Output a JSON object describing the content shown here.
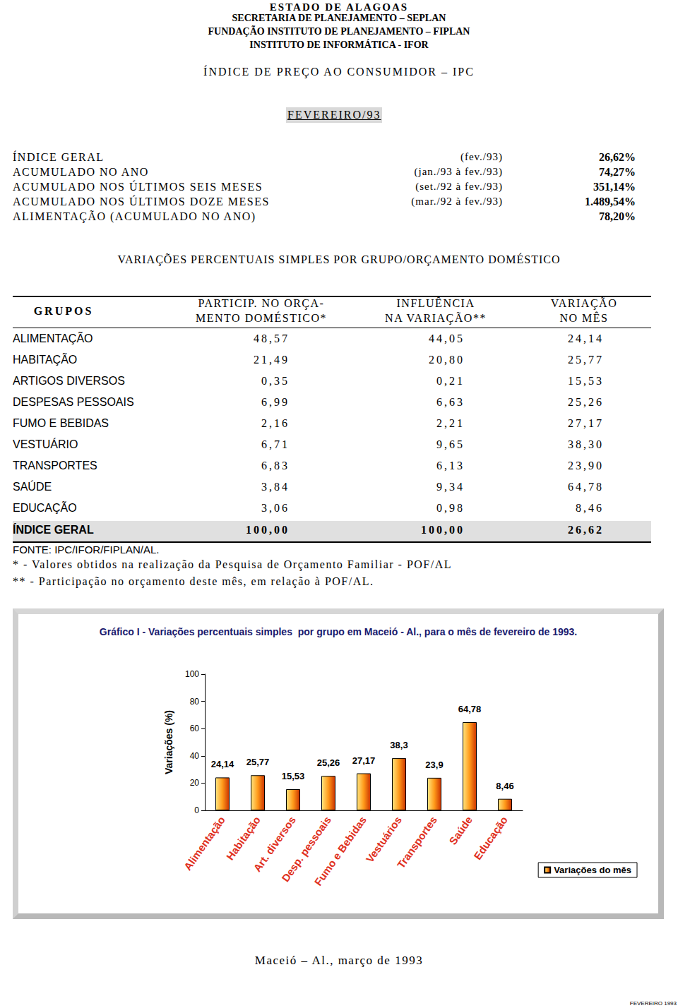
{
  "header": {
    "lines": [
      "ESTADO DE ALAGOAS",
      "SECRETARIA DE PLANEJAMENTO – SEPLAN",
      "FUNDAÇÃO INSTITUTO DE PLANEJAMENTO – FIPLAN",
      "INSTITUTO DE INFORMÁTICA - IFOR"
    ],
    "title": "ÍNDICE DE PREÇO AO CONSUMIDOR – IPC",
    "month": "FEVEREIRO/93"
  },
  "summary": [
    {
      "label": "ÍNDICE GERAL",
      "period": "(fev./93)",
      "value": "26,62%"
    },
    {
      "label": "ACUMULADO NO ANO",
      "period": "(jan./93 à fev./93)",
      "value": "74,27%"
    },
    {
      "label": "ACUMULADO NOS ÚLTIMOS SEIS MESES",
      "period": "(set./92 à fev./93)",
      "value": "351,14%"
    },
    {
      "label": "ACUMULADO NOS ÚLTIMOS DOZE MESES",
      "period": "(mar./92 à fev./93)",
      "value": "1.489,54%"
    },
    {
      "label": "ALIMENTAÇÃO (ACUMULADO NO ANO)",
      "value": "78,20%"
    }
  ],
  "section_title": "VARIAÇÕES PERCENTUAIS SIMPLES POR GRUPO/ORÇAMENTO DOMÉSTICO",
  "table": {
    "headers": [
      [
        "GRUPOS"
      ],
      [
        "PARTICIP. NO ORÇA-",
        "MENTO DOMÉSTICO*"
      ],
      [
        "INFLUÊNCIA",
        "NA VARIAÇÃO**"
      ],
      [
        "VARIAÇÃO",
        "NO MÊS"
      ]
    ],
    "rows": [
      [
        "ALIMENTAÇÃO",
        "48,57",
        "44,05",
        "24,14"
      ],
      [
        "HABITAÇÃO",
        "21,49",
        "20,80",
        "25,77"
      ],
      [
        "ARTIGOS DIVERSOS",
        "0,35",
        "0,21",
        "15,53"
      ],
      [
        "DESPESAS PESSOAIS",
        "6,99",
        "6,63",
        "25,26"
      ],
      [
        "FUMO E BEBIDAS",
        "2,16",
        "2,21",
        "27,17"
      ],
      [
        "VESTUÁRIO",
        "6,71",
        "9,65",
        "38,30"
      ],
      [
        "TRANSPORTES",
        "6,83",
        "6,13",
        "23,90"
      ],
      [
        "SAÚDE",
        "3,84",
        "9,34",
        "64,78"
      ],
      [
        "EDUCAÇÃO",
        "3,06",
        "0,98",
        "8,46"
      ]
    ],
    "total": [
      "ÍNDICE GERAL",
      "100,00",
      "100,00",
      "26,62"
    ]
  },
  "source": "FONTE: IPC/IFOR/FIPLAN/AL.",
  "notes": [
    "* - Valores obtidos na realização da Pesquisa de Orçamento Familiar - POF/AL",
    "** - Participação no orçamento deste mês, em relação à POF/AL."
  ],
  "chart_data": {
    "type": "bar",
    "title": "Gráfico I - Variações percentuais simples  por grupo em Maceió - Al., para o mês de fevereiro de 1993.",
    "y_label": "Variações (%)",
    "categories": [
      "Alimentação",
      "Habitação",
      "Art. diversos",
      "Desp. pessoais",
      "Fumo e Bebidas",
      "Vestuários",
      "Transportes",
      "Saúde",
      "Educação"
    ],
    "series": [
      {
        "name": "Variações do mês",
        "color": "#ff9a1a",
        "values": [
          24.14,
          25.77,
          15.53,
          25.26,
          27.17,
          38.3,
          23.9,
          64.78,
          8.46
        ],
        "value_labels": [
          "24,14",
          "25,77",
          "15,53",
          "25,26",
          "27,17",
          "38,3",
          "23,9",
          "64,78",
          "8,46"
        ]
      }
    ],
    "ylim": [
      0,
      100
    ],
    "yticks": [
      0,
      20,
      40,
      60,
      80,
      100
    ],
    "grid": false,
    "legend": "right",
    "data_labels": true
  },
  "place_date": "Maceió – Al., março de 1993",
  "page_mark": "FEVEREIRO 1993"
}
